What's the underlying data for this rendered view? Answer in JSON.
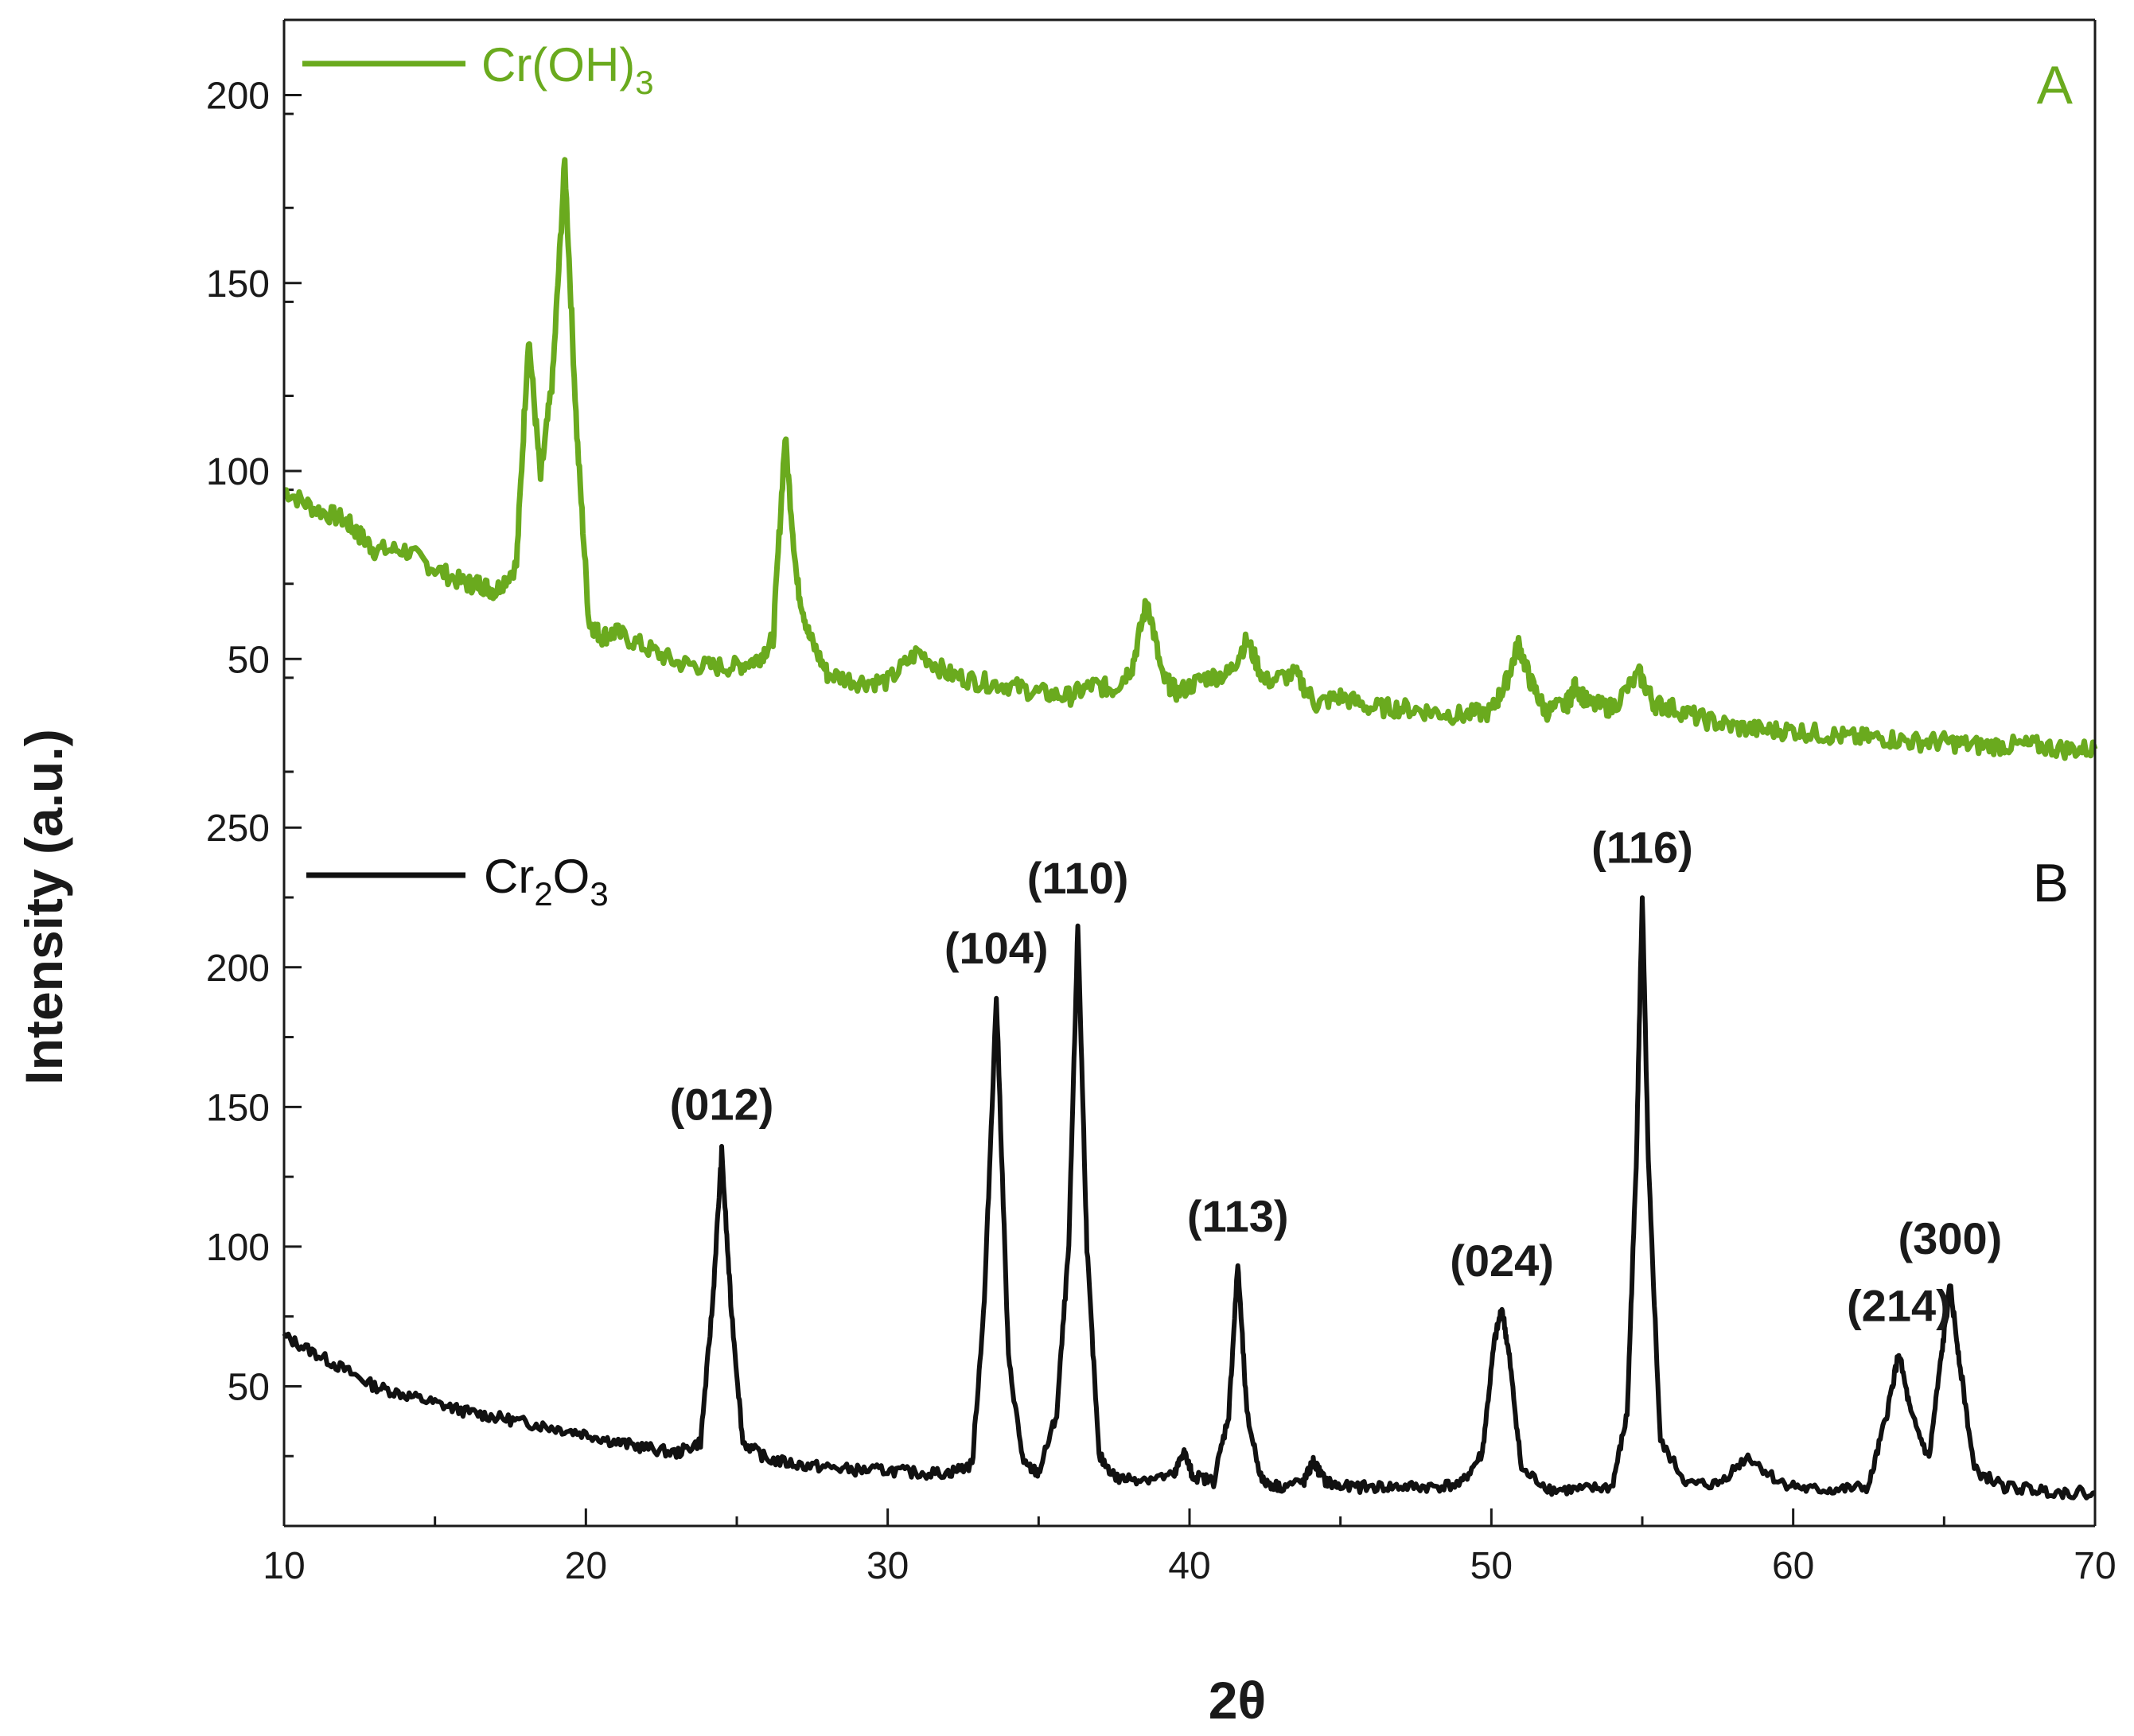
{
  "chart_data": [
    {
      "type": "line",
      "panel_label": "A",
      "xlim": [
        10,
        70
      ],
      "ylim": [
        20,
        220
      ],
      "yticks": [
        50,
        100,
        150,
        200
      ],
      "grid": false,
      "legend_position": "top-left",
      "series": [
        {
          "name": "Cr(OH)3",
          "name_base": "Cr(OH)",
          "name_sub": "3",
          "color": "#6aaa1e",
          "x": [
            10,
            11,
            12,
            12.5,
            13,
            14,
            15,
            16,
            16.5,
            17,
            17.7,
            18.1,
            18.5,
            18.9,
            19.3,
            19.7,
            20.1,
            20.5,
            21,
            22,
            23,
            24,
            25,
            25.7,
            26.2,
            26.6,
            27,
            27.4,
            28,
            29,
            30,
            31,
            32,
            33,
            34,
            35,
            36,
            36.8,
            37.5,
            38.1,
            38.6,
            39.1,
            39.6,
            40.5,
            41.3,
            41.9,
            42.5,
            43.5,
            44.2,
            45,
            46,
            47,
            48,
            49,
            50,
            50.5,
            50.9,
            51.3,
            51.8,
            52.5,
            52.8,
            53.2,
            54,
            54.9,
            55.4,
            56,
            57,
            58,
            59,
            60,
            61,
            62,
            63,
            64,
            65,
            66,
            67,
            68,
            69,
            70
          ],
          "y": [
            95,
            90,
            87,
            83,
            79,
            79,
            74,
            70,
            70,
            68,
            75,
            136,
            98,
            125,
            182,
            110,
            60,
            56,
            57,
            53,
            49,
            48,
            48,
            50,
            55,
            109,
            70,
            56,
            46,
            44,
            44,
            52,
            46,
            44,
            43,
            41,
            40,
            43,
            42,
            48,
            66,
            45,
            41,
            45,
            46,
            55,
            44,
            46,
            38,
            40,
            37,
            37,
            36,
            35,
            36,
            44,
            54,
            44,
            36,
            38,
            43,
            38,
            37,
            46,
            38,
            37,
            34,
            32,
            31,
            31,
            30,
            29,
            29,
            28,
            28,
            27,
            27,
            27,
            26,
            26
          ]
        }
      ]
    },
    {
      "type": "line",
      "panel_label": "B",
      "xlim": [
        10,
        70
      ],
      "xticks": [
        10,
        20,
        30,
        40,
        50,
        60,
        70
      ],
      "xlabel": "2θ",
      "ylim": [
        0,
        270
      ],
      "yticks": [
        50,
        100,
        150,
        200,
        250
      ],
      "grid": false,
      "legend_position": "top-left",
      "series": [
        {
          "name": "Cr2O3",
          "name_parts": [
            [
              "Cr",
              "2"
            ],
            [
              "O",
              "3"
            ]
          ],
          "color": "#111111",
          "x": [
            10,
            11,
            12,
            13,
            14,
            15,
            16,
            17,
            18,
            19,
            20,
            21,
            22,
            23,
            23.8,
            24.2,
            24.5,
            24.8,
            25.2,
            26,
            27,
            28,
            29,
            30,
            31,
            32,
            32.8,
            33.2,
            33.6,
            34,
            34.5,
            35,
            35.6,
            36,
            36.3,
            36.6,
            37,
            37.6,
            38.5,
            39.5,
            39.8,
            40.1,
            40.8,
            41.3,
            41.6,
            41.9,
            42.4,
            43,
            43.8,
            44.1,
            44.5,
            45,
            46,
            47,
            48,
            49,
            49.7,
            50.1,
            50.35,
            50.6,
            51,
            52,
            53,
            54,
            54.5,
            54.8,
            55,
            55.2,
            55.6,
            56.5,
            57.5,
            58.5,
            59.5,
            60.5,
            61.5,
            62.5,
            63.1,
            63.5,
            63.9,
            64.5,
            64.9,
            65.2,
            65.5,
            66,
            67,
            68,
            69,
            70
          ],
          "y": [
            68,
            62,
            56,
            50,
            47,
            44,
            41,
            39,
            37,
            35,
            33,
            30,
            28,
            26,
            30,
            80,
            134,
            80,
            30,
            24,
            22,
            21,
            20,
            20,
            19,
            19,
            22,
            80,
            190,
            60,
            22,
            19,
            40,
            100,
            215,
            100,
            25,
            17,
            17,
            18,
            27,
            18,
            16,
            40,
            94,
            40,
            16,
            14,
            16,
            23,
            16,
            14,
            14,
            14,
            14,
            15,
            26,
            66,
            78,
            60,
            20,
            13,
            13,
            14,
            40,
            130,
            226,
            130,
            30,
            15,
            15,
            25,
            16,
            13,
            13,
            14,
            40,
            62,
            40,
            24,
            60,
            86,
            60,
            20,
            14,
            13,
            12,
            12
          ]
        }
      ],
      "annotations": [
        {
          "text": "(012)",
          "x": 24.5,
          "y": 134
        },
        {
          "text": "(104)",
          "x": 33.6,
          "y": 190
        },
        {
          "text": "(110)",
          "x": 36.3,
          "y": 215
        },
        {
          "text": "(113)",
          "x": 41.6,
          "y": 94
        },
        {
          "text": "(024)",
          "x": 50.35,
          "y": 78
        },
        {
          "text": "(116)",
          "x": 55.0,
          "y": 226
        },
        {
          "text": "(214)",
          "x": 63.5,
          "y": 62
        },
        {
          "text": "(300)",
          "x": 65.2,
          "y": 86
        }
      ]
    }
  ],
  "ylabel": "Intensity (a.u.)"
}
